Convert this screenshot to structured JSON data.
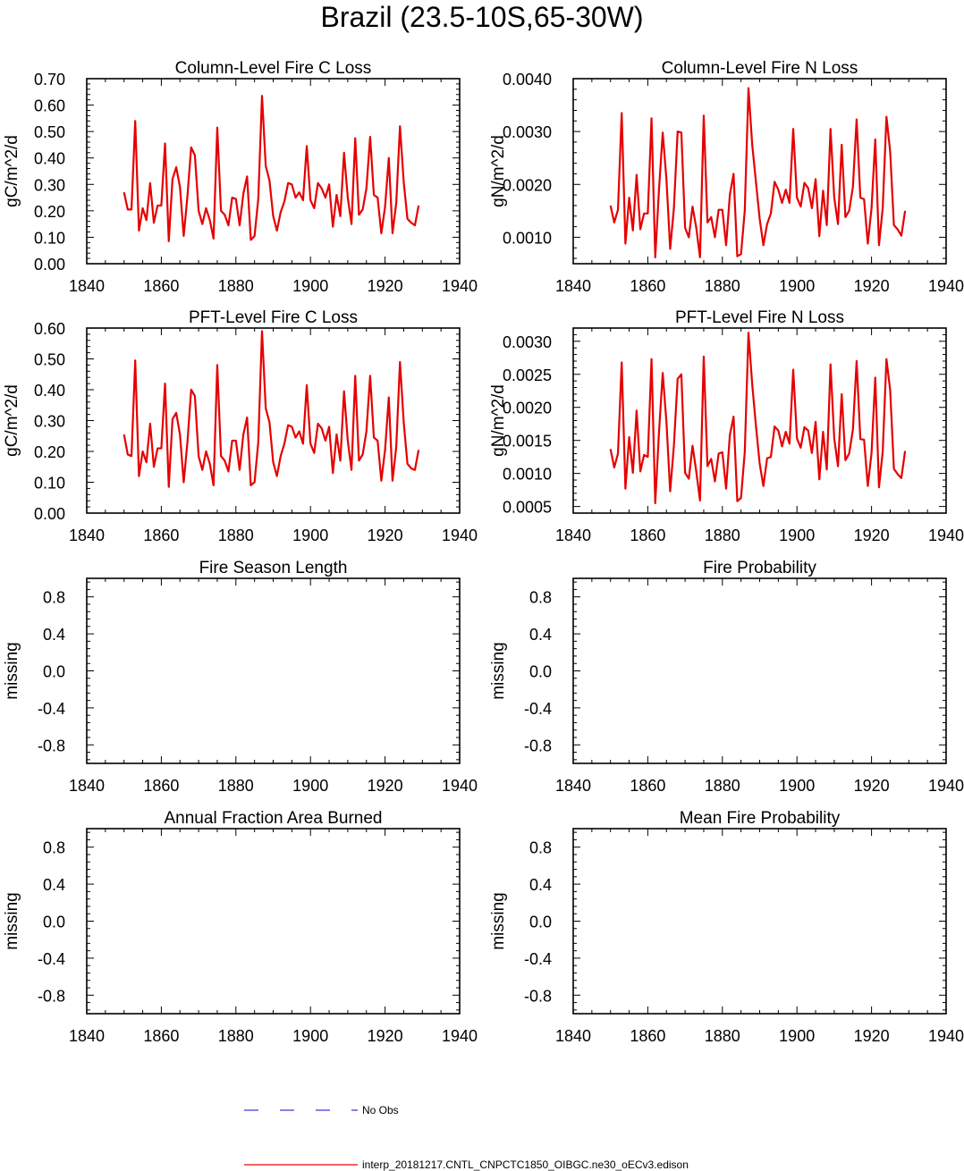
{
  "title": "Brazil (23.5-10S,65-30W)",
  "chart_data": [
    {
      "type": "line",
      "title": "Column-Level Fire C Loss",
      "ylabel": "gC/m^2/d",
      "xlim": [
        1840,
        1940
      ],
      "ylim": [
        0.0,
        0.7
      ],
      "xticks": [
        1840,
        1860,
        1880,
        1900,
        1920,
        1940
      ],
      "yticks": [
        0.0,
        0.1,
        0.2,
        0.3,
        0.4,
        0.5,
        0.6,
        0.7
      ],
      "ytick_labels": [
        "0.00",
        "0.10",
        "0.20",
        "0.30",
        "0.40",
        "0.50",
        "0.60",
        "0.70"
      ],
      "series": [
        {
          "name": "interp_20181217.CNTL_CNPCTC1850_OIBGC.ne30_oECv3.edison",
          "color": "#e60000",
          "x_start": 1850,
          "values": [
            0.27,
            0.205,
            0.205,
            0.54,
            0.125,
            0.21,
            0.165,
            0.305,
            0.155,
            0.22,
            0.22,
            0.455,
            0.085,
            0.32,
            0.365,
            0.29,
            0.105,
            0.255,
            0.44,
            0.41,
            0.2,
            0.15,
            0.21,
            0.165,
            0.095,
            0.515,
            0.2,
            0.185,
            0.145,
            0.25,
            0.245,
            0.145,
            0.265,
            0.33,
            0.09,
            0.105,
            0.245,
            0.635,
            0.37,
            0.315,
            0.18,
            0.125,
            0.195,
            0.235,
            0.305,
            0.3,
            0.25,
            0.27,
            0.24,
            0.445,
            0.24,
            0.21,
            0.305,
            0.285,
            0.25,
            0.3,
            0.14,
            0.26,
            0.18,
            0.42,
            0.25,
            0.15,
            0.475,
            0.185,
            0.205,
            0.285,
            0.48,
            0.26,
            0.25,
            0.115,
            0.215,
            0.4,
            0.115,
            0.23,
            0.52,
            0.31,
            0.17,
            0.155,
            0.145,
            0.22
          ]
        }
      ]
    },
    {
      "type": "line",
      "title": "Column-Level Fire N Loss",
      "ylabel": "gN/m^2/d",
      "xlim": [
        1840,
        1940
      ],
      "ylim": [
        0.0005,
        0.004
      ],
      "xticks": [
        1840,
        1860,
        1880,
        1900,
        1920,
        1940
      ],
      "yticks": [
        0.001,
        0.002,
        0.003,
        0.004
      ],
      "ytick_labels": [
        "0.0010",
        "0.0020",
        "0.0030",
        "0.0040"
      ],
      "series": [
        {
          "name": "interp_20181217.CNTL_CNPCTC1850_OIBGC.ne30_oECv3.edison",
          "color": "#e60000",
          "x_start": 1850,
          "values": [
            0.0016,
            0.00128,
            0.00152,
            0.00335,
            0.00088,
            0.00175,
            0.00113,
            0.00218,
            0.00115,
            0.00145,
            0.00145,
            0.00325,
            0.00062,
            0.0019,
            0.00298,
            0.0021,
            0.00078,
            0.00155,
            0.003,
            0.00298,
            0.00118,
            0.001,
            0.00158,
            0.00118,
            0.00062,
            0.0033,
            0.00128,
            0.00138,
            0.001,
            0.00152,
            0.00152,
            0.00085,
            0.0018,
            0.0022,
            0.00064,
            0.00068,
            0.0015,
            0.00382,
            0.00275,
            0.00205,
            0.00135,
            0.00085,
            0.00125,
            0.00145,
            0.00205,
            0.0019,
            0.00165,
            0.0019,
            0.00165,
            0.00305,
            0.00175,
            0.00158,
            0.00203,
            0.00193,
            0.00155,
            0.0021,
            0.00102,
            0.00188,
            0.00123,
            0.00305,
            0.00175,
            0.00125,
            0.00275,
            0.00138,
            0.0015,
            0.00195,
            0.00323,
            0.00175,
            0.00172,
            0.00088,
            0.00155,
            0.00285,
            0.00085,
            0.00155,
            0.00328,
            0.00262,
            0.00123,
            0.00115,
            0.00103,
            0.0015
          ]
        }
      ]
    },
    {
      "type": "line",
      "title": "PFT-Level Fire C Loss",
      "ylabel": "gC/m^2/d",
      "xlim": [
        1840,
        1940
      ],
      "ylim": [
        0.0,
        0.6
      ],
      "xticks": [
        1840,
        1860,
        1880,
        1900,
        1920,
        1940
      ],
      "yticks": [
        0.0,
        0.1,
        0.2,
        0.3,
        0.4,
        0.5,
        0.6
      ],
      "ytick_labels": [
        "0.00",
        "0.10",
        "0.20",
        "0.30",
        "0.40",
        "0.50",
        "0.60"
      ],
      "series": [
        {
          "name": "interp_20181217.CNTL_CNPCTC1850_OIBGC.ne30_oECv3.edison",
          "color": "#e60000",
          "x_start": 1850,
          "values": [
            0.255,
            0.19,
            0.185,
            0.495,
            0.12,
            0.2,
            0.165,
            0.29,
            0.15,
            0.21,
            0.21,
            0.42,
            0.085,
            0.305,
            0.325,
            0.255,
            0.1,
            0.23,
            0.4,
            0.38,
            0.185,
            0.14,
            0.2,
            0.16,
            0.09,
            0.48,
            0.185,
            0.17,
            0.135,
            0.235,
            0.235,
            0.14,
            0.255,
            0.31,
            0.09,
            0.1,
            0.23,
            0.59,
            0.34,
            0.295,
            0.165,
            0.12,
            0.185,
            0.225,
            0.285,
            0.28,
            0.245,
            0.265,
            0.225,
            0.415,
            0.225,
            0.195,
            0.29,
            0.275,
            0.235,
            0.28,
            0.13,
            0.255,
            0.17,
            0.395,
            0.235,
            0.14,
            0.445,
            0.17,
            0.19,
            0.265,
            0.445,
            0.245,
            0.235,
            0.105,
            0.205,
            0.375,
            0.105,
            0.215,
            0.49,
            0.295,
            0.16,
            0.145,
            0.14,
            0.205
          ]
        }
      ]
    },
    {
      "type": "line",
      "title": "PFT-Level Fire N Loss",
      "ylabel": "gN/m^2/d",
      "xlim": [
        1840,
        1940
      ],
      "ylim": [
        0.0004,
        0.0032
      ],
      "xticks": [
        1840,
        1860,
        1880,
        1900,
        1920,
        1940
      ],
      "yticks": [
        0.0005,
        0.001,
        0.0015,
        0.002,
        0.0025,
        0.003
      ],
      "ytick_labels": [
        "0.0005",
        "0.0010",
        "0.0015",
        "0.0020",
        "0.0025",
        "0.0030"
      ],
      "series": [
        {
          "name": "interp_20181217.CNTL_CNPCTC1850_OIBGC.ne30_oECv3.edison",
          "color": "#e60000",
          "x_start": 1850,
          "values": [
            0.00137,
            0.00109,
            0.0013,
            0.00268,
            0.00077,
            0.00155,
            0.00101,
            0.00195,
            0.00103,
            0.00128,
            0.00125,
            0.00273,
            0.00055,
            0.00162,
            0.00252,
            0.00178,
            0.00073,
            0.00142,
            0.00243,
            0.0025,
            0.00101,
            0.00092,
            0.00142,
            0.00103,
            0.00059,
            0.00277,
            0.00111,
            0.00122,
            0.00088,
            0.0013,
            0.00132,
            0.00077,
            0.00158,
            0.00186,
            0.00058,
            0.00063,
            0.00132,
            0.00313,
            0.00235,
            0.00172,
            0.00115,
            0.00081,
            0.00123,
            0.00125,
            0.00171,
            0.00165,
            0.00141,
            0.00163,
            0.00145,
            0.00257,
            0.00153,
            0.00139,
            0.0017,
            0.00165,
            0.00131,
            0.00178,
            0.00091,
            0.00163,
            0.00106,
            0.00265,
            0.00153,
            0.00111,
            0.0022,
            0.0012,
            0.0013,
            0.00166,
            0.0027,
            0.00152,
            0.00151,
            0.00081,
            0.00131,
            0.00245,
            0.00079,
            0.00133,
            0.00273,
            0.00226,
            0.00107,
            0.00099,
            0.00093,
            0.00134
          ]
        }
      ]
    },
    {
      "type": "line",
      "title": "Fire Season Length",
      "ylabel": "missing",
      "xlim": [
        1840,
        1940
      ],
      "ylim": [
        -1.0,
        1.0
      ],
      "xticks": [
        1840,
        1860,
        1880,
        1900,
        1920,
        1940
      ],
      "yticks": [
        -0.8,
        -0.4,
        0.0,
        0.4,
        0.8
      ],
      "ytick_labels": [
        "-0.8",
        "-0.4",
        "0.0",
        "0.4",
        "0.8"
      ],
      "series": []
    },
    {
      "type": "line",
      "title": "Fire Probability",
      "ylabel": "missing",
      "xlim": [
        1840,
        1940
      ],
      "ylim": [
        -1.0,
        1.0
      ],
      "xticks": [
        1840,
        1860,
        1880,
        1900,
        1920,
        1940
      ],
      "yticks": [
        -0.8,
        -0.4,
        0.0,
        0.4,
        0.8
      ],
      "ytick_labels": [
        "-0.8",
        "-0.4",
        "0.0",
        "0.4",
        "0.8"
      ],
      "series": []
    },
    {
      "type": "line",
      "title": "Annual Fraction Area Burned",
      "ylabel": "missing",
      "xlim": [
        1840,
        1940
      ],
      "ylim": [
        -1.0,
        1.0
      ],
      "xticks": [
        1840,
        1860,
        1880,
        1900,
        1920,
        1940
      ],
      "yticks": [
        -0.8,
        -0.4,
        0.0,
        0.4,
        0.8
      ],
      "ytick_labels": [
        "-0.8",
        "-0.4",
        "0.0",
        "0.4",
        "0.8"
      ],
      "series": []
    },
    {
      "type": "line",
      "title": "Mean Fire Probability",
      "ylabel": "missing",
      "xlim": [
        1840,
        1940
      ],
      "ylim": [
        -1.0,
        1.0
      ],
      "xticks": [
        1840,
        1860,
        1880,
        1900,
        1920,
        1940
      ],
      "yticks": [
        -0.8,
        -0.4,
        0.0,
        0.4,
        0.8
      ],
      "ytick_labels": [
        "-0.8",
        "-0.4",
        "0.0",
        "0.4",
        "0.8"
      ],
      "series": []
    }
  ],
  "legend": [
    {
      "label": "No Obs",
      "color": "#3b3bd6",
      "style": "dashed"
    },
    {
      "label": "interp_20181217.CNTL_CNPCTC1850_OIBGC.ne30_oECv3.edison",
      "color": "#e60000",
      "style": "solid"
    }
  ]
}
